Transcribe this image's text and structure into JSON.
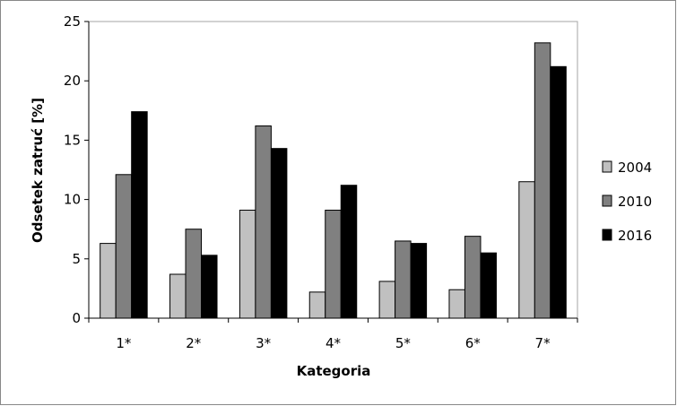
{
  "chart_data": {
    "type": "bar",
    "categories": [
      "1*",
      "2*",
      "3*",
      "4*",
      "5*",
      "6*",
      "7*"
    ],
    "series": [
      {
        "name": "2004",
        "color": "#c0c0c0",
        "values": [
          6.3,
          3.7,
          9.1,
          2.2,
          3.1,
          2.4,
          11.5
        ]
      },
      {
        "name": "2010",
        "color": "#808080",
        "values": [
          12.1,
          7.5,
          16.2,
          9.1,
          6.5,
          6.9,
          23.2
        ]
      },
      {
        "name": "2016",
        "color": "#000000",
        "values": [
          17.4,
          5.3,
          14.3,
          11.2,
          6.3,
          5.5,
          21.2
        ]
      }
    ],
    "xlabel": "Kategoria",
    "ylabel": "Odsetek zatruć [%]",
    "ylim": [
      0,
      25
    ],
    "yticks": [
      0,
      5,
      10,
      15,
      20,
      25
    ],
    "grid": false,
    "legend": "right"
  }
}
